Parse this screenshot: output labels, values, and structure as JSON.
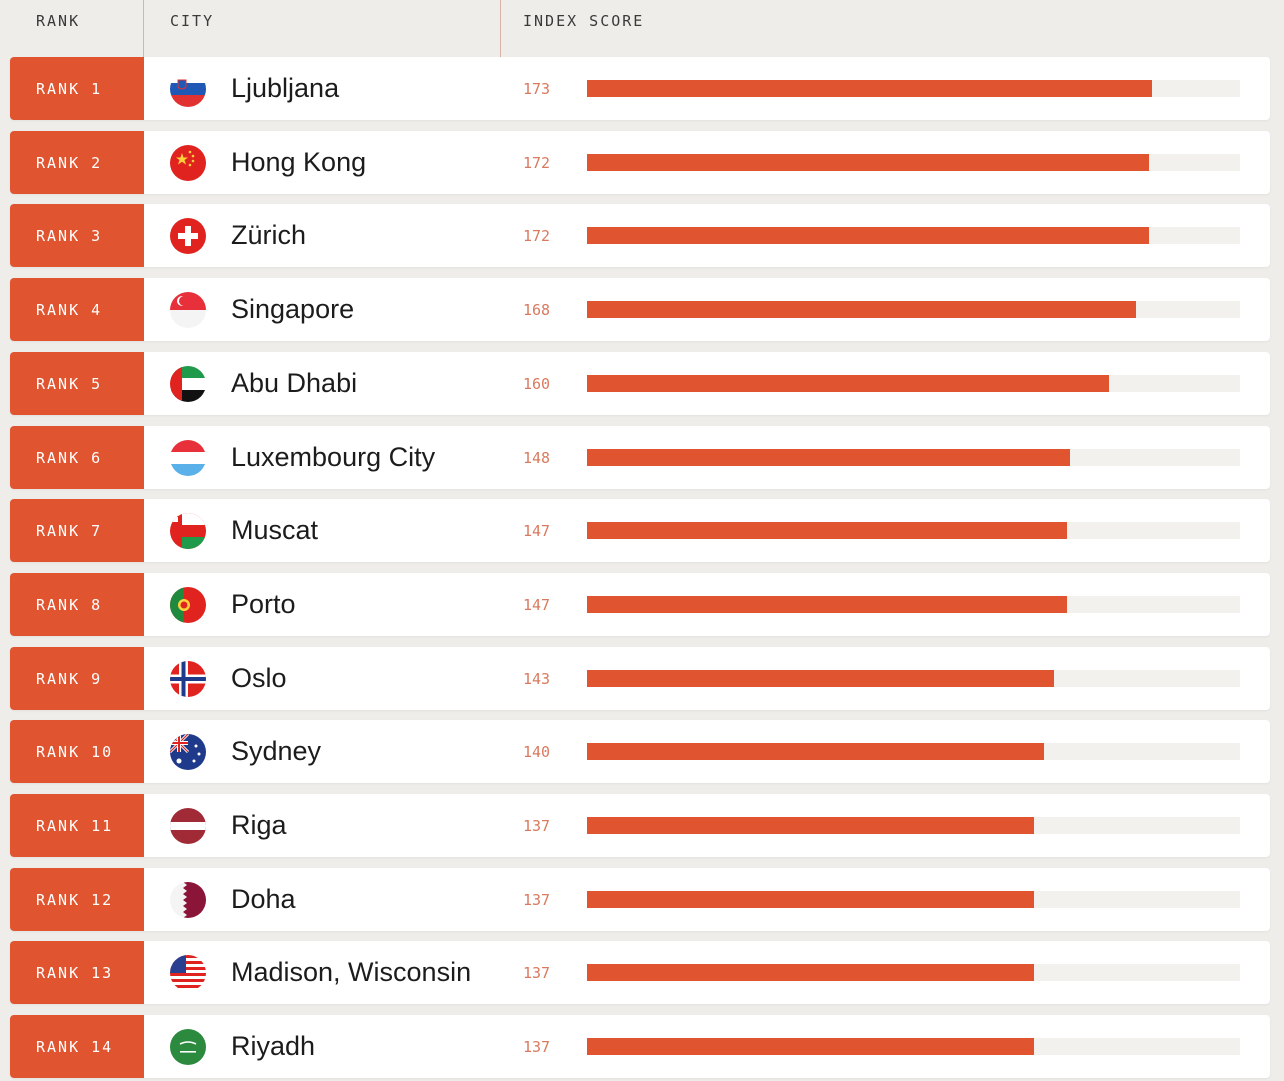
{
  "header": {
    "rank": "RANK",
    "city": "CITY",
    "score": "INDEX SCORE"
  },
  "colors": {
    "accent": "#e0542f",
    "track": "#f2f1ee",
    "score_text": "#d97a5e"
  },
  "chart_data": {
    "type": "bar",
    "orientation": "horizontal",
    "xlim": [
      0,
      200
    ],
    "categories": [
      "Ljubljana",
      "Hong Kong",
      "Zürich",
      "Singapore",
      "Abu Dhabi",
      "Luxembourg City",
      "Muscat",
      "Porto",
      "Oslo",
      "Sydney",
      "Riga",
      "Doha",
      "Madison, Wisconsin",
      "Riyadh"
    ],
    "values": [
      173,
      172,
      172,
      168,
      160,
      148,
      147,
      147,
      143,
      140,
      137,
      137,
      137,
      137
    ],
    "rows": [
      {
        "rank": "RANK 1",
        "city": "Ljubljana",
        "score": "173",
        "value": 173,
        "flag": "slovenia-flag-icon"
      },
      {
        "rank": "RANK 2",
        "city": "Hong Kong",
        "score": "172",
        "value": 172,
        "flag": "china-flag-icon"
      },
      {
        "rank": "RANK 3",
        "city": "Zürich",
        "score": "172",
        "value": 172,
        "flag": "switzerland-flag-icon"
      },
      {
        "rank": "RANK 4",
        "city": "Singapore",
        "score": "168",
        "value": 168,
        "flag": "singapore-flag-icon"
      },
      {
        "rank": "RANK 5",
        "city": "Abu Dhabi",
        "score": "160",
        "value": 160,
        "flag": "uae-flag-icon"
      },
      {
        "rank": "RANK 6",
        "city": "Luxembourg City",
        "score": "148",
        "value": 148,
        "flag": "luxembourg-flag-icon"
      },
      {
        "rank": "RANK 7",
        "city": "Muscat",
        "score": "147",
        "value": 147,
        "flag": "oman-flag-icon"
      },
      {
        "rank": "RANK 8",
        "city": "Porto",
        "score": "147",
        "value": 147,
        "flag": "portugal-flag-icon"
      },
      {
        "rank": "RANK 9",
        "city": "Oslo",
        "score": "143",
        "value": 143,
        "flag": "norway-flag-icon"
      },
      {
        "rank": "RANK 10",
        "city": "Sydney",
        "score": "140",
        "value": 140,
        "flag": "australia-flag-icon"
      },
      {
        "rank": "RANK 11",
        "city": "Riga",
        "score": "137",
        "value": 137,
        "flag": "latvia-flag-icon"
      },
      {
        "rank": "RANK 12",
        "city": "Doha",
        "score": "137",
        "value": 137,
        "flag": "qatar-flag-icon"
      },
      {
        "rank": "RANK 13",
        "city": "Madison, Wisconsin",
        "score": "137",
        "value": 137,
        "flag": "usa-flag-icon"
      },
      {
        "rank": "RANK 14",
        "city": "Riyadh",
        "score": "137",
        "value": 137,
        "flag": "saudi-arabia-flag-icon"
      }
    ]
  }
}
